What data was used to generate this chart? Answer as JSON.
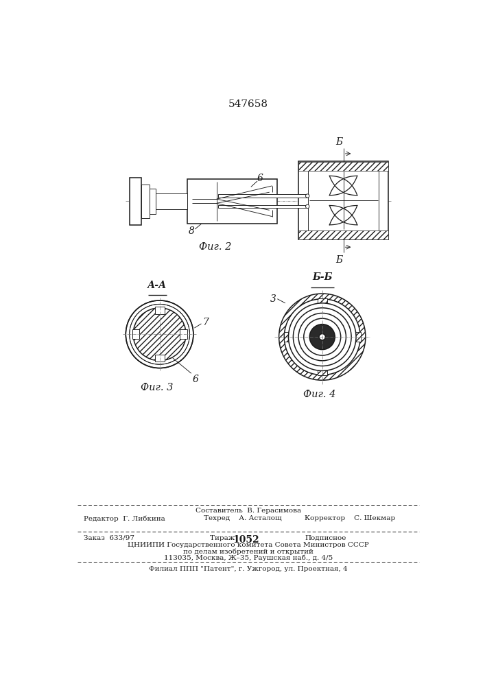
{
  "patent_number": "547658",
  "fig2_label": "Фиг. 2",
  "fig3_label": "Фиг. 3",
  "fig4_label": "Фиг. 4",
  "section_aa": "А-А",
  "section_bb": "Б-Б",
  "label_6_fig2": "6",
  "label_8_fig2": "8",
  "label_b_top": "Б",
  "label_b_bottom": "Б",
  "label_7_fig3": "7",
  "label_6_fig3": "6",
  "label_3_fig4": "3",
  "footer_line1": "Составитель  В. Герасимова",
  "footer_line2_left": "Редактор  Г. Либкина",
  "footer_line2_mid": "Техред    А. Асталощ",
  "footer_line2_right": "Корректор    С. Шекмар",
  "footer_line3_left": "Заказ  633/97",
  "footer_line3_mid": "Тираж  1052",
  "footer_line3_right": "Подписное",
  "footer_line4": "ЦНИИПИ Государственного комитета Совета Министров СССР",
  "footer_line5": "по делам изобретений и открытий",
  "footer_line6": "113035, Москва, Ж–35, Раушская наб., д. 4/5",
  "footer_line7": "Филиал ППП \"Патент\", г. Ужгород, ул. Проектная, 4",
  "bg_color": "#ffffff",
  "line_color": "#1a1a1a"
}
